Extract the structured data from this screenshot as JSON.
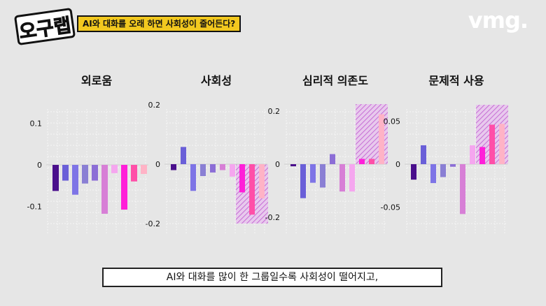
{
  "header": {
    "show_logo": "오구랩",
    "topic": "AI와 대화를 오래 하면 사회성이 줄어든다?",
    "brand": "vmg."
  },
  "caption": "AI와 대화를 많이 한 그룹일수록 사회성이 떨어지고,",
  "colors": [
    "#4a0f8c",
    "#6a5fd8",
    "#7e74e6",
    "#8a7fd4",
    "#8c6ed6",
    "#d77fd6",
    "#f5a6ef",
    "#ff1fd8",
    "#ff4fa8",
    "#ffb3c6"
  ],
  "chart_data": [
    {
      "type": "bar",
      "title": "외로움",
      "y_ticks": [
        "0.1",
        "0",
        "-0.1"
      ],
      "y_tick_values": [
        0.1,
        0,
        -0.1
      ],
      "ylim": [
        -0.16,
        0.15
      ],
      "values": [
        -0.063,
        -0.038,
        -0.072,
        -0.045,
        -0.038,
        -0.118,
        -0.02,
        -0.108,
        -0.04,
        -0.022
      ],
      "highlight": null
    },
    {
      "type": "bar",
      "title": "사회성",
      "y_ticks": [
        "0.2",
        "0",
        "-0.2"
      ],
      "y_tick_values": [
        0.2,
        0,
        -0.2
      ],
      "ylim": [
        -0.24,
        0.24
      ],
      "values": [
        -0.02,
        0.058,
        -0.09,
        -0.04,
        -0.028,
        -0.02,
        -0.042,
        -0.095,
        -0.17,
        -0.115
      ],
      "highlight": [
        7,
        9
      ]
    },
    {
      "type": "bar",
      "title": "심리적 의존도",
      "y_ticks": [
        "0.2",
        "0",
        "-0.2"
      ],
      "y_tick_values": [
        0.2,
        0,
        -0.2
      ],
      "ylim": [
        -0.24,
        0.24
      ],
      "values": [
        -0.008,
        -0.128,
        -0.07,
        -0.088,
        0.038,
        -0.103,
        -0.103,
        0.02,
        0.02,
        0.188
      ],
      "highlight": [
        7,
        9
      ]
    },
    {
      "type": "bar",
      "title": "문제적 사용",
      "y_ticks": [
        "0.05",
        "0",
        "-0.05"
      ],
      "y_tick_values": [
        0.05,
        0,
        -0.05
      ],
      "ylim": [
        -0.08,
        0.075
      ],
      "values": [
        -0.018,
        0.022,
        -0.022,
        -0.015,
        -0.003,
        -0.058,
        0.022,
        0.02,
        0.046,
        0.047
      ],
      "highlight": [
        7,
        9
      ]
    }
  ]
}
